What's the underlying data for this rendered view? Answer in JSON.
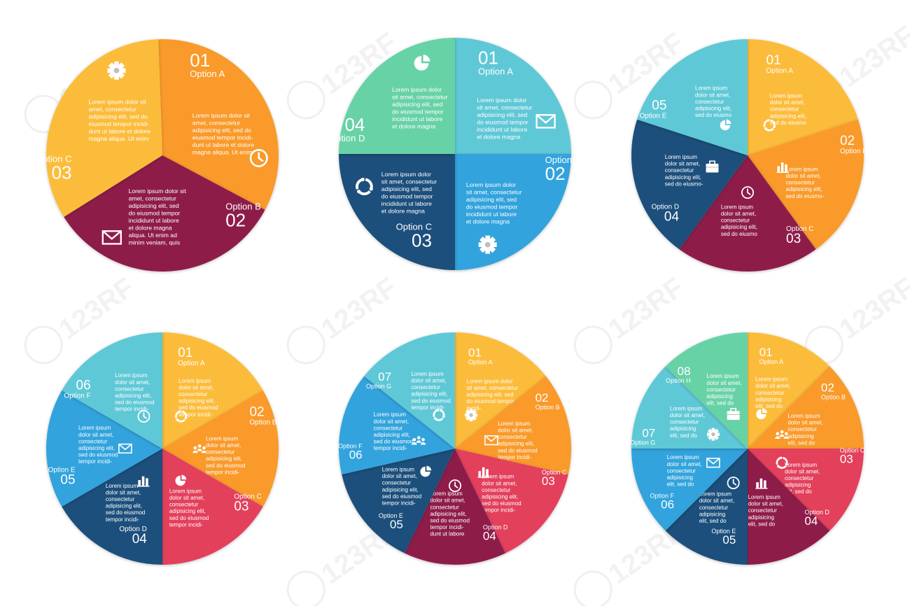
{
  "colors": {
    "orange": "#f99a2b",
    "yellow": "#fcbc3b",
    "maroon": "#8e1f4a",
    "teal": "#5ec8d6",
    "mint": "#67d2a7",
    "navy": "#1b4f7c",
    "sky": "#31a3dd",
    "rose": "#e3405c",
    "white": "#ffffff"
  },
  "watermark": {
    "text": "123RF"
  },
  "diagrams": [
    {
      "id": "three-option-circle",
      "slices": [
        {
          "num": "01",
          "option": "Option A",
          "color": "orange",
          "icon": "clock-icon",
          "text": [
            "Lorem ipsum dolor sit",
            "amet, consectetur",
            "adipisicing elit, sed do",
            "eiusmod tempor incidi-",
            "dunt ut labore et dolore",
            "magna aliqua. Ut enim"
          ]
        },
        {
          "num": "02",
          "option": "Option B",
          "color": "maroon",
          "icon": "envelope-icon",
          "text": [
            "Lorem ipsum dolor sit",
            "amet, consectetur",
            "adipisicing elit, sed",
            "do eiusmod tempor",
            "incididunt ut labore",
            "et dolore magna",
            "aliqua. Ut enim ad",
            "minim veniam, quis"
          ]
        },
        {
          "num": "03",
          "option": "Option C",
          "color": "yellow",
          "icon": "gear-icon",
          "text": [
            "Lorem ipsum dolor sit",
            "amet, consectetur",
            "adipisicing elit, sed do",
            "eiusmod tempor incidi-",
            "dunt ut labore et dolore",
            "magna aliqua. Ut enim"
          ]
        }
      ]
    },
    {
      "id": "four-option-circle",
      "slices": [
        {
          "num": "01",
          "option": "Option A",
          "color": "teal",
          "icon": "envelope-icon",
          "text": [
            "Lorem ipsum dolor",
            "sit amet, consectetur",
            "adipisicing elit, sed",
            "do eiusmod tempor",
            "incididunt ut labore",
            "et dolore magna"
          ]
        },
        {
          "num": "02",
          "option": "Option B",
          "color": "sky",
          "icon": "gear-icon",
          "text": [
            "Lorem ipsum dolor",
            "sit amet, consectetur",
            "adipisicing elit, sed",
            "do eiusmod tempor",
            "incididunt ut labore",
            "et dolore magna"
          ]
        },
        {
          "num": "03",
          "option": "Option C",
          "color": "navy",
          "icon": "cycle-icon",
          "text": [
            "Lorem ipsum dolor",
            "sit amet, consectetur",
            "adipisicing elit, sed",
            "do eiusmod tempor",
            "incididunt ut labore",
            "et dolore magna"
          ]
        },
        {
          "num": "04",
          "option": "Option D",
          "color": "mint",
          "icon": "pie-chart-icon",
          "text": [
            "Lorem ipsum dolor",
            "sit amet, consectetur",
            "adipisicing elit, sed",
            "do eiusmod tempor",
            "incididunt ut labore",
            "et dolore magna"
          ]
        }
      ]
    },
    {
      "id": "five-option-circle",
      "slices": [
        {
          "num": "01",
          "option": "Option A",
          "color": "yellow",
          "icon": "cycle-icon",
          "text": [
            "Lorem ipsum",
            "dolor sit amet,",
            "consectetur",
            "adipisicing elit,",
            "sed do eiusmo"
          ]
        },
        {
          "num": "02",
          "option": "Option B",
          "color": "orange",
          "icon": "bar-chart-icon",
          "text": [
            "Lorem ipsum",
            "dolor sit amet,",
            "consectetur",
            "adipisicing elit,",
            "sed do eiusmo-"
          ]
        },
        {
          "num": "03",
          "option": "Option C",
          "color": "maroon",
          "icon": "clock-icon",
          "text": [
            "Lorem ipsum",
            "dolor sit amet,",
            "consectetur",
            "adipisicing elit,",
            "sed do eiusmo"
          ]
        },
        {
          "num": "04",
          "option": "Option D",
          "color": "navy",
          "icon": "briefcase-icon",
          "text": [
            "Lorem ipsum",
            "dolor sit amet,",
            "consectetur",
            "adipisicing elit,",
            "sed do eiusmo-"
          ]
        },
        {
          "num": "05",
          "option": "Option E",
          "color": "teal",
          "icon": "pie-chart-icon",
          "text": [
            "Lorem ipsum",
            "dolor sit amet,",
            "consectetur",
            "adipisicing elit,",
            "sed do eiusmo"
          ]
        }
      ]
    },
    {
      "id": "six-option-circle",
      "slices": [
        {
          "num": "01",
          "option": "Option A",
          "color": "yellow",
          "icon": "cycle-icon",
          "text": [
            "Lorem ipsum",
            "dolor sit amet,",
            "consectetur",
            "adipisicing elit,",
            "sed do eiusmod",
            "tempor incidi-"
          ]
        },
        {
          "num": "02",
          "option": "Option B",
          "color": "orange",
          "icon": "people-icon",
          "text": [
            "Lorem ipsum",
            "dolor sit amet,",
            "consectetur",
            "adipisicing elit,",
            "sed do eiusmod",
            "tempor incidi-"
          ]
        },
        {
          "num": "03",
          "option": "Option C",
          "color": "rose",
          "icon": "pie-chart-icon",
          "text": [
            "Lorem ipsum",
            "dolor sit amet,",
            "consectetur",
            "adipisicing elit,",
            "sed do eiusmod",
            "tempor incidi-"
          ]
        },
        {
          "num": "04",
          "option": "Option D",
          "color": "navy",
          "icon": "bar-chart-icon",
          "text": [
            "Lorem ipsum",
            "dolor sit amet,",
            "consectetur",
            "adipisicing elit,",
            "sed do eiusmod",
            "tempor incidi-"
          ]
        },
        {
          "num": "05",
          "option": "Option E",
          "color": "sky",
          "icon": "envelope-icon",
          "text": [
            "Lorem ipsum",
            "dolor sit amet,",
            "consectetur",
            "adipisicing elit,",
            "sed do eiusmod",
            "tempor incidi-"
          ]
        },
        {
          "num": "06",
          "option": "Option F",
          "color": "teal",
          "icon": "clock-icon",
          "text": [
            "Lorem ipsum",
            "dolor sit amet,",
            "consectetur",
            "adipisicing elit,",
            "sed do eiusmod",
            "tempor incidi-"
          ]
        }
      ]
    },
    {
      "id": "seven-option-circle",
      "slices": [
        {
          "num": "01",
          "option": "Option A",
          "color": "yellow",
          "icon": "gear-icon",
          "text": [
            "Lorem ipsum dolor",
            "sit amet, consectetur",
            "adipisicing elit, sed",
            "do eiusmod tempor",
            "incidi-"
          ]
        },
        {
          "num": "02",
          "option": "Option B",
          "color": "orange",
          "icon": "envelope-icon",
          "text": [
            "Lorem ipsum",
            "dolor sit amet,",
            "consectetur",
            "adipisicing elit,",
            "sed do eiusmod",
            "tempor incidi-"
          ]
        },
        {
          "num": "03",
          "option": "Option C",
          "color": "rose",
          "icon": "bar-chart-icon",
          "text": [
            "Lorem ipsum",
            "dolor sit amet,",
            "consectetur",
            "adipisicing elit,",
            "sed do eiusmod",
            "tempor incidi-"
          ]
        },
        {
          "num": "04",
          "option": "Option D",
          "color": "maroon",
          "icon": "clock-icon",
          "text": [
            "Lorem ipsum",
            "dolor sit amet,",
            "consectetur",
            "adipisicing elit,",
            "sed do eiusmod",
            "tempor incidi-",
            "dunt ut labore"
          ]
        },
        {
          "num": "05",
          "option": "Option E",
          "color": "navy",
          "icon": "pie-chart-icon",
          "text": [
            "Lorem ipsum",
            "dolor sit amet,",
            "consectetur",
            "adipisicing elit,",
            "sed do eiusmod",
            "tempor incidi-"
          ]
        },
        {
          "num": "06",
          "option": "Option F",
          "color": "sky",
          "icon": "people-icon",
          "text": [
            "Lorem ipsum",
            "dolor sit amet,",
            "consectetur",
            "adipisicing elit,",
            "sed do eiusmod",
            "tempor incidi-"
          ]
        },
        {
          "num": "07",
          "option": "Option G",
          "color": "teal",
          "icon": "cycle-icon",
          "text": [
            "Lorem ipsum",
            "dolor sit amet,",
            "consectetur",
            "adipisicing elit,",
            "sed do eiusmod",
            "tempor incidi-"
          ]
        }
      ]
    },
    {
      "id": "eight-option-circle",
      "slices": [
        {
          "num": "01",
          "option": "Option A",
          "color": "yellow",
          "icon": "pie-chart-icon",
          "text": [
            "Lorem ipsum",
            "dolor sit amet,",
            "consectetur",
            "adipisicing",
            "elit, sed do"
          ]
        },
        {
          "num": "02",
          "option": "Option B",
          "color": "orange",
          "icon": "people-icon",
          "text": [
            "Lorem ipsum",
            "dolor sit amet,",
            "consectetur",
            "adipisicing",
            "elit, sed do"
          ]
        },
        {
          "num": "03",
          "option": "Option C",
          "color": "rose",
          "icon": "cycle-icon",
          "text": [
            "Lorem ipsum",
            "dolor sit amet,",
            "consectetur",
            "adipisicing",
            "elit, sed do"
          ]
        },
        {
          "num": "04",
          "option": "Option D",
          "color": "maroon",
          "icon": "bar-chart-icon",
          "text": [
            "Lorem ipsum",
            "dolor sit amet,",
            "consectetur",
            "adipisicing",
            "elit, sed do"
          ]
        },
        {
          "num": "05",
          "option": "Option E",
          "color": "navy",
          "icon": "clock-icon",
          "text": [
            "Lorem ipsum",
            "dolor sit amet,",
            "consectetur",
            "adipisicing",
            "elit, sed do"
          ]
        },
        {
          "num": "06",
          "option": "Option F",
          "color": "sky",
          "icon": "envelope-icon",
          "text": [
            "Lorem ipsum",
            "dolor sit amet,",
            "consectetur",
            "adipisicing",
            "elit, sed do"
          ]
        },
        {
          "num": "07",
          "option": "Option G",
          "color": "teal",
          "icon": "gear-icon",
          "text": [
            "Lorem ipsum",
            "dolor sit amet,",
            "consectetur",
            "adipisicing",
            "elit, sed do"
          ]
        },
        {
          "num": "08",
          "option": "Option H",
          "color": "mint",
          "icon": "briefcase-icon",
          "text": [
            "Lorem ipsum",
            "dolor sit amet,",
            "consectetur",
            "adipisicing",
            "elit, sed do"
          ]
        }
      ]
    }
  ]
}
